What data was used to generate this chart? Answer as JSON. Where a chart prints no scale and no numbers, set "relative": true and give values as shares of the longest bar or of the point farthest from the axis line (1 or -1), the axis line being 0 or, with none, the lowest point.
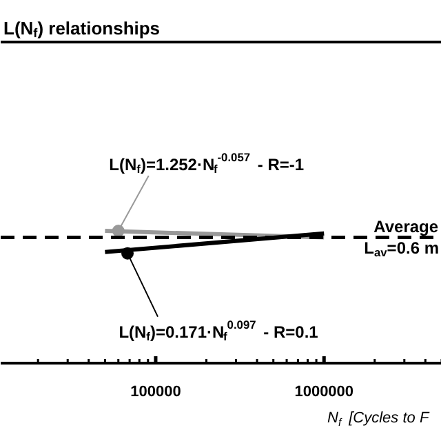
{
  "chart_data": {
    "type": "line",
    "relative": true,
    "title": "L(N$_{f}$) relationships",
    "xlabel": "N$_{f}$ [Cycles  to F",
    "log": "x",
    "xlim": [
      12000,
      5000000
    ],
    "xticks": [
      100000,
      1000000
    ],
    "grid": false,
    "series": [
      {
        "color": "#999999",
        "x": [
          50000,
          1000000
        ],
        "values": [
          1.0,
          0.95
        ]
      },
      {
        "color": "#000000",
        "x": [
          50000,
          1000000
        ],
        "values": [
          0.84,
          0.98
        ]
      },
      {
        "type": "scatter",
        "marker": "circle",
        "color": "#999999",
        "x": [
          60000
        ],
        "values": [
          1.0
        ]
      },
      {
        "type": "scatter",
        "marker": "circle",
        "color": "#000000",
        "x": [
          68000
        ],
        "values": [
          0.83
        ]
      }
    ],
    "ref_lines": [
      {
        "axis": "y",
        "value": 0.95,
        "color": "#000000",
        "line_style": "dashed"
      }
    ],
    "annotations": [
      {
        "text": "L(N$_{f}$)=1.252·N$_{f}$$^{-0.057}$ - R=-1",
        "x": 60000,
        "y": 1.0
      },
      {
        "text": "L(N$_{f}$)=0.171·N$_{f}$$^{0.097}$ - R=0.1",
        "x": 68000,
        "y": 0.83
      },
      "Average\nL$_{av}$=0.6 m"
    ]
  }
}
